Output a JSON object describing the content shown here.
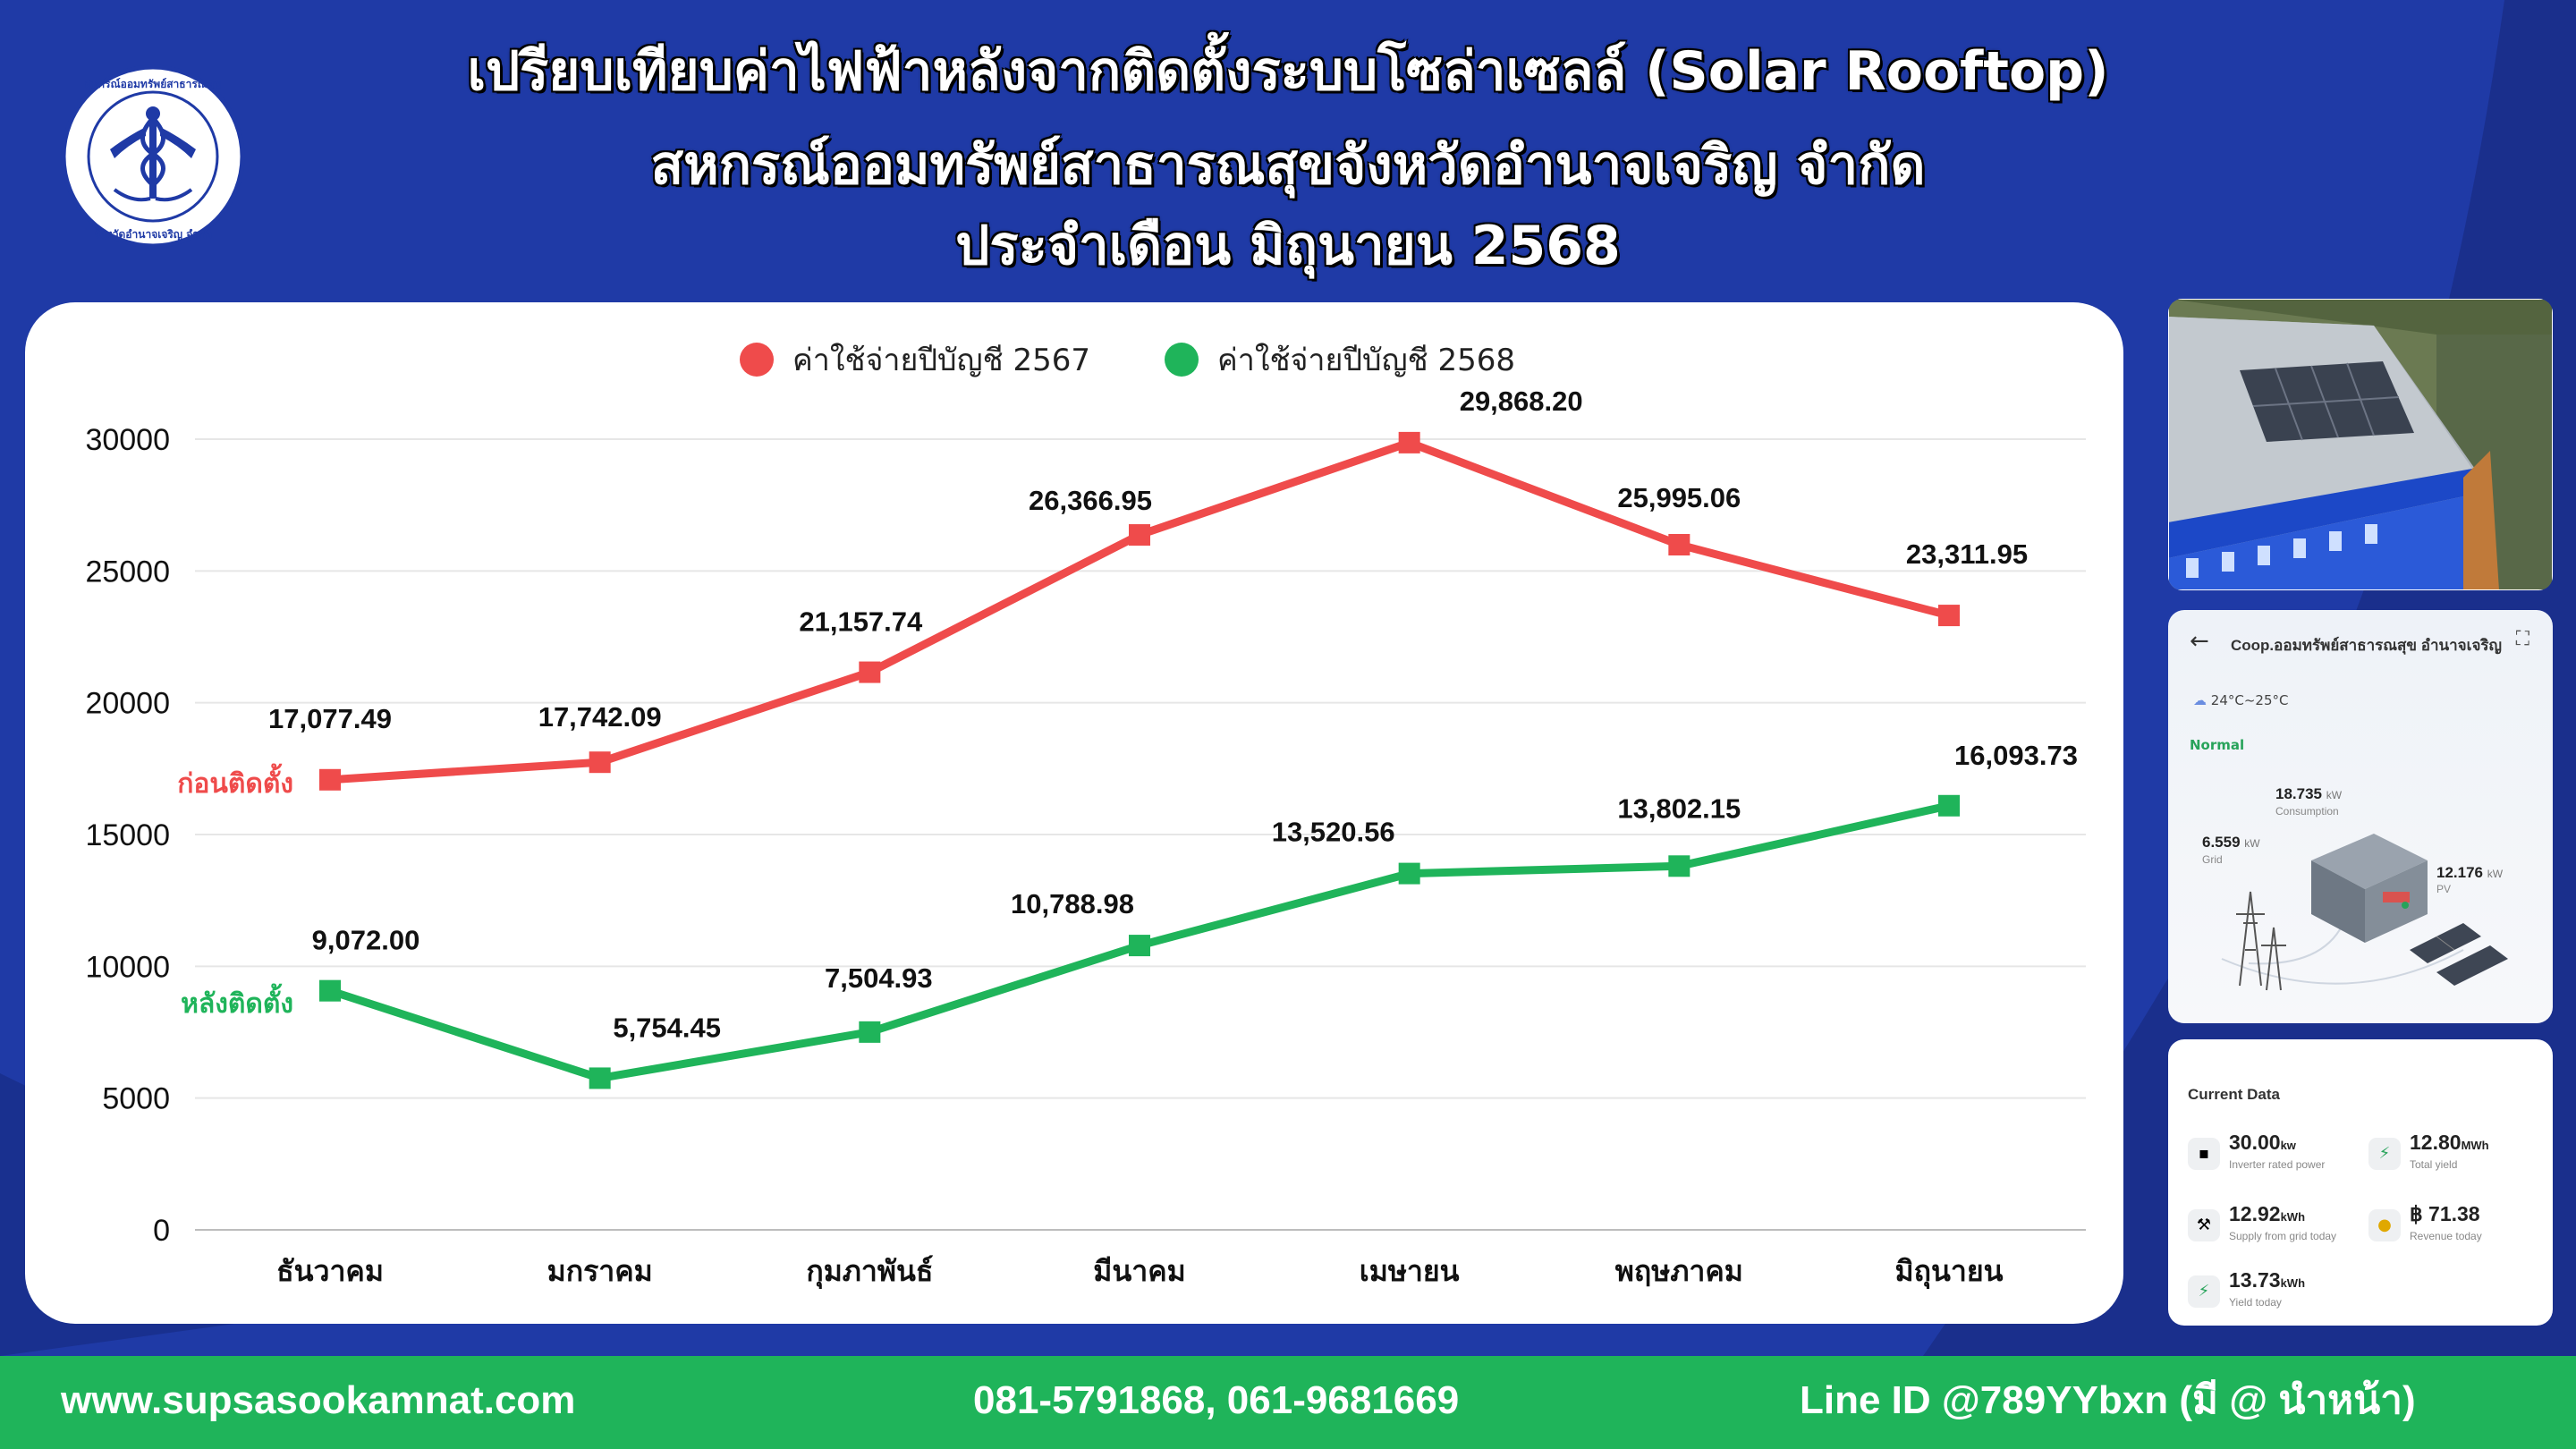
{
  "header": {
    "title_line1": "เปรียบเทียบค่าไฟฟ้าหลังจากติดตั้งระบบโซล่าเซลล์ (Solar Rooftop)",
    "title_line2": "สหกรณ์ออมทรัพย์สาธารณสุขจังหวัดอำนาจเจริญ จำกัด",
    "title_line3": "ประจำเดือน มิถุนายน 2568",
    "logo_text_top": "สหกรณ์ออมทรัพย์สาธารณสุข",
    "logo_text_bottom": "จังหวัดอำนาจเจริญ จำกัด"
  },
  "chart_data": {
    "type": "line",
    "categories": [
      "ธันวาคม",
      "มกราคม",
      "กุมภาพันธ์",
      "มีนาคม",
      "เมษายน",
      "พฤษภาคม",
      "มิถุนายน"
    ],
    "ylim": [
      0,
      30000
    ],
    "yticks": [
      "0",
      "5000",
      "10000",
      "15000",
      "20000",
      "25000",
      "30000"
    ],
    "grid": true,
    "legend_position": "top",
    "series": [
      {
        "name": "ค่าใช้จ่ายปีบัญชี 2567",
        "color": "#ef4b4b",
        "values": [
          17077.49,
          17742.09,
          21157.74,
          26366.95,
          29868.2,
          25995.06,
          23311.95
        ],
        "labels": [
          "17,077.49",
          "17,742.09",
          "21,157.74",
          "26,366.95",
          "29,868.20",
          "25,995.06",
          "23,311.95"
        ],
        "series_tag": "ก่อนติดตั้ง"
      },
      {
        "name": "ค่าใช้จ่ายปีบัญชี 2568",
        "color": "#1fb45a",
        "values": [
          9072.0,
          5754.45,
          7504.93,
          10788.98,
          13520.56,
          13802.15,
          16093.73
        ],
        "labels": [
          "9,072.00",
          "5,754.45",
          "7,504.93",
          "10,788.98",
          "13,520.56",
          "13,802.15",
          "16,093.73"
        ],
        "series_tag": "หลังติดตั้ง"
      }
    ]
  },
  "app": {
    "title": "Coop.ออมทรัพย์สาธารณสุข อำนาจเจริญ",
    "weather": "24°C~25°C",
    "status": "Normal",
    "consumption_value": "18.735",
    "consumption_unit": "kW",
    "consumption_label": "Consumption",
    "grid_value": "6.559",
    "grid_unit": "kW",
    "grid_label": "Grid",
    "pv_value": "12.176",
    "pv_unit": "kW",
    "pv_label": "PV"
  },
  "current_data": {
    "heading": "Current Data",
    "items": [
      {
        "value": "30.00",
        "unit": "kw",
        "label": "Inverter rated power"
      },
      {
        "value": "12.80",
        "unit": "MWh",
        "label": "Total yield"
      },
      {
        "value": "12.92",
        "unit": "kWh",
        "label": "Supply from grid today"
      },
      {
        "value": "฿ 71.38",
        "unit": "",
        "label": "Revenue today"
      },
      {
        "value": "13.73",
        "unit": "kWh",
        "label": "Yield today"
      }
    ]
  },
  "footer": {
    "website": "www.supsasookamnat.com",
    "phones": "081-5791868, 061-9681669",
    "line_id": "Line ID @789YYbxn (มี @ นำหน้า)"
  }
}
